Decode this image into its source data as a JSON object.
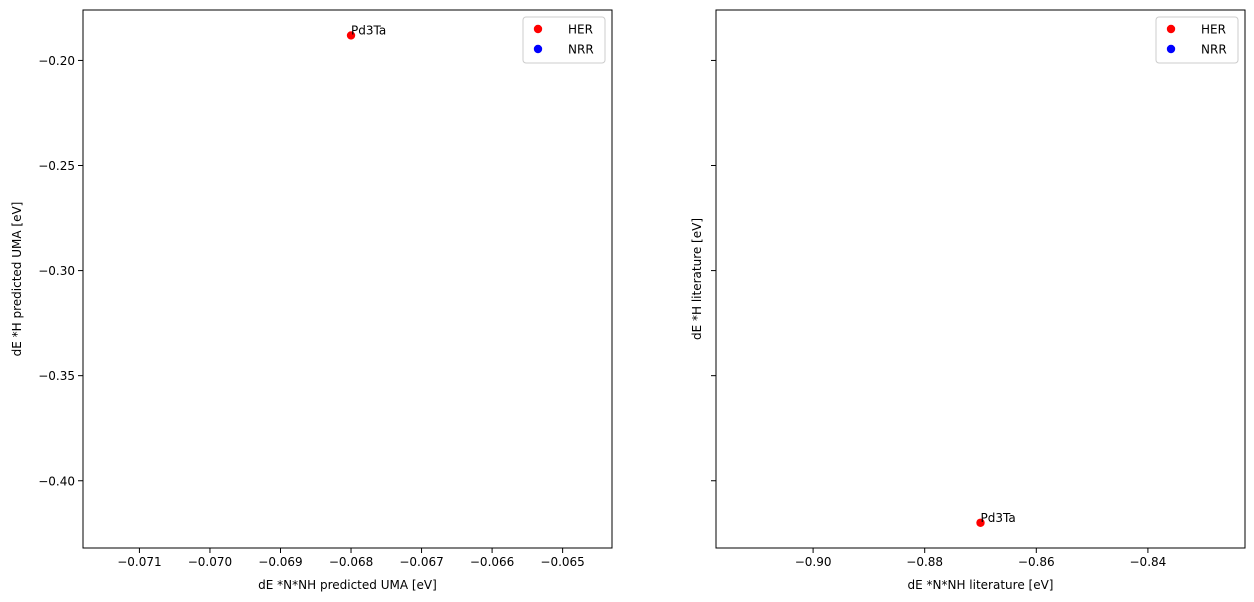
{
  "chart_data": [
    {
      "type": "scatter",
      "title": "",
      "xlabel": "dE *N*NH predicted UMA [eV]",
      "ylabel": "dE *H predicted UMA [eV]",
      "xlim": [
        -0.0718,
        -0.0643
      ],
      "ylim": [
        -0.432,
        -0.176
      ],
      "xticks": [
        -0.071,
        -0.07,
        -0.069,
        -0.068,
        -0.067,
        -0.066,
        -0.065
      ],
      "xtick_labels": [
        "−0.071",
        "−0.070",
        "−0.069",
        "−0.068",
        "−0.067",
        "−0.066",
        "−0.065"
      ],
      "yticks": [
        -0.2,
        -0.25,
        -0.3,
        -0.35,
        -0.4
      ],
      "ytick_labels": [
        "−0.20",
        "−0.25",
        "−0.30",
        "−0.35",
        "−0.40"
      ],
      "show_ytick_labels": true,
      "grid": false,
      "legend": "top-right",
      "series": [
        {
          "name": "HER",
          "color": "#ff0000",
          "points": [
            {
              "x": -0.068,
              "y": -0.1881,
              "label": "Pd3Ta"
            }
          ]
        },
        {
          "name": "NRR",
          "color": "#0000ff",
          "points": []
        }
      ]
    },
    {
      "type": "scatter",
      "title": "",
      "xlabel": "dE *N*NH literature [eV]",
      "ylabel": "dE *H literature [eV]",
      "xlim": [
        -0.9174,
        -0.8226
      ],
      "ylim": [
        -0.432,
        -0.176
      ],
      "xticks": [
        -0.9,
        -0.88,
        -0.86,
        -0.84
      ],
      "xtick_labels": [
        "−0.90",
        "−0.88",
        "−0.86",
        "−0.84"
      ],
      "yticks": [
        -0.2,
        -0.25,
        -0.3,
        -0.35,
        -0.4
      ],
      "ytick_labels": [],
      "show_ytick_labels": false,
      "grid": false,
      "legend": "top-right",
      "series": [
        {
          "name": "HER",
          "color": "#ff0000",
          "points": [
            {
              "x": -0.87,
              "y": -0.42,
              "label": "Pd3Ta"
            }
          ]
        },
        {
          "name": "NRR",
          "color": "#0000ff",
          "points": []
        }
      ]
    }
  ]
}
